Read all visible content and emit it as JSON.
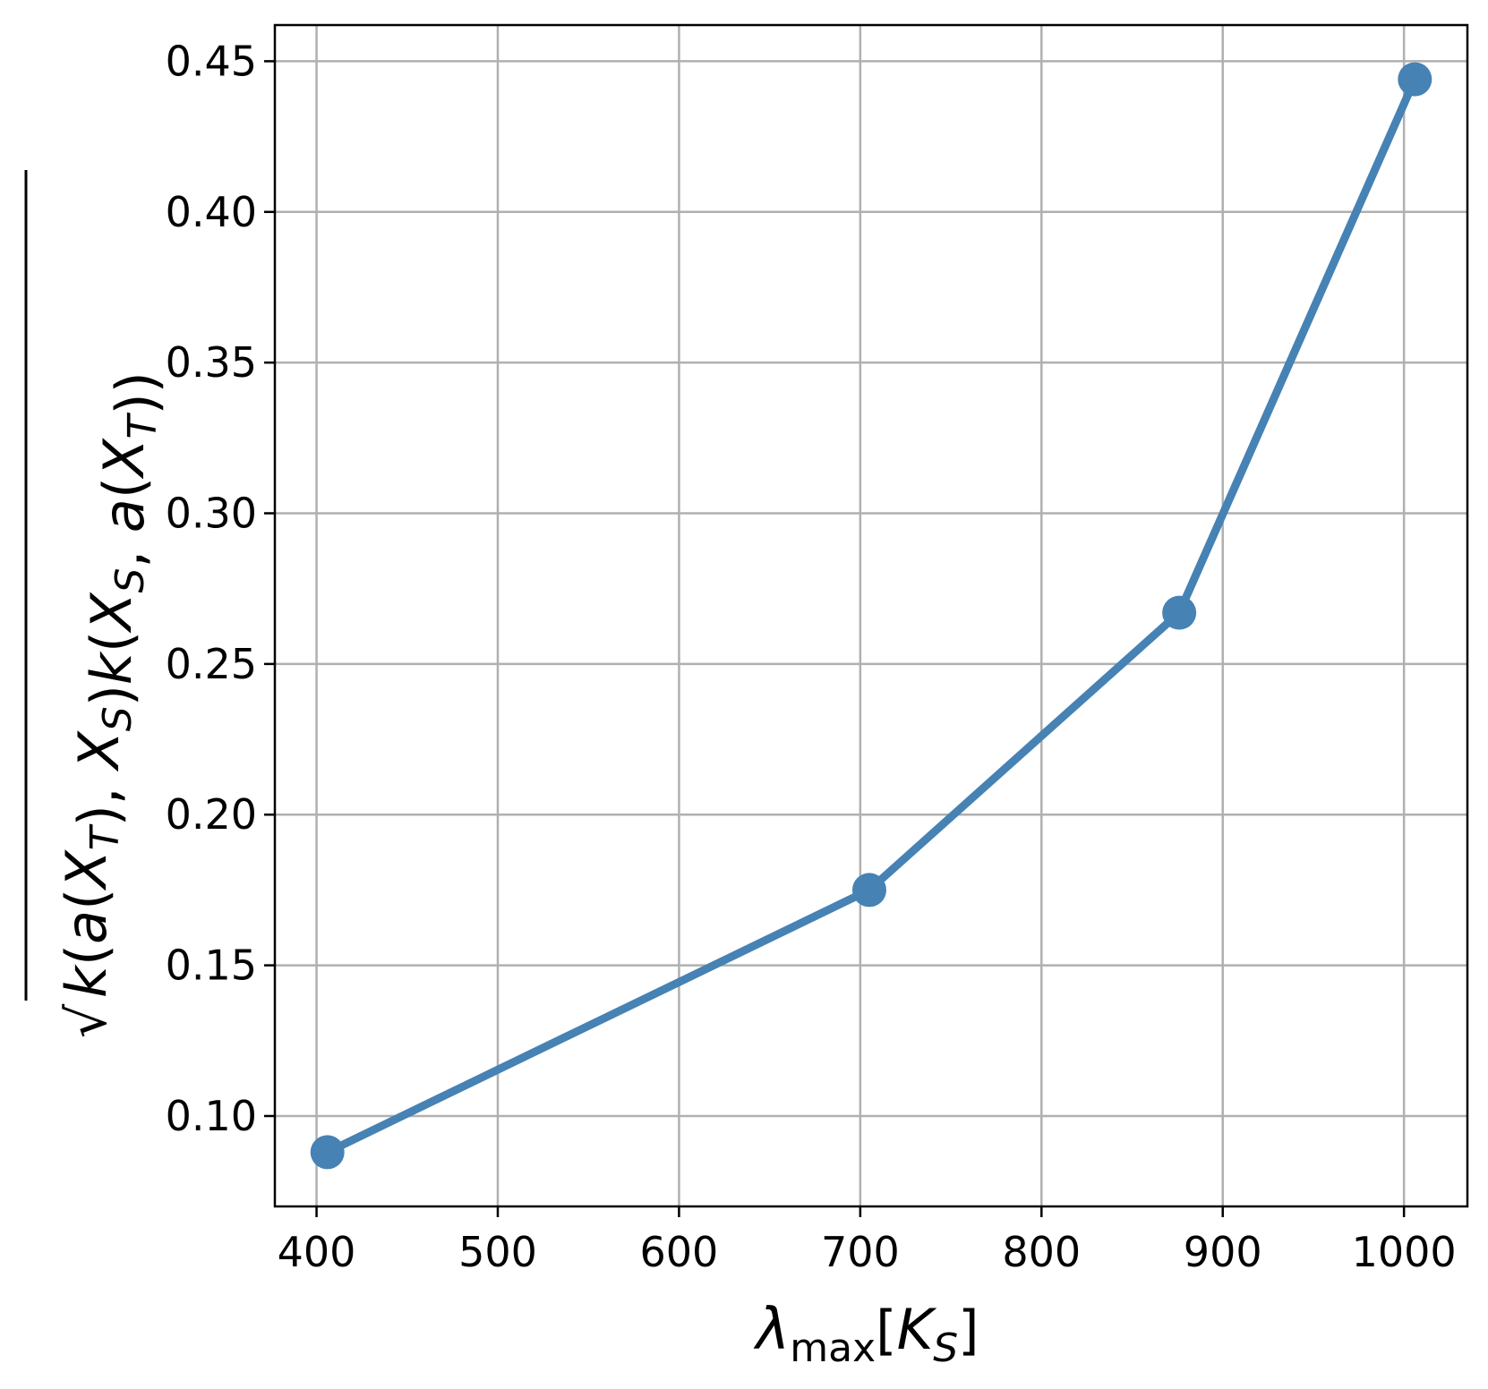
{
  "chart_data": {
    "type": "line",
    "title": "",
    "x": [
      406,
      705,
      876,
      1006
    ],
    "series": [
      {
        "values": [
          0.088,
          0.175,
          0.267,
          0.444
        ]
      }
    ],
    "xlim": [
      377,
      1035
    ],
    "ylim": [
      0.07,
      0.462
    ],
    "xticks": [
      400,
      500,
      600,
      700,
      800,
      900,
      1000
    ],
    "xtick_labels": [
      "400",
      "500",
      "600",
      "700",
      "800",
      "900",
      "1000"
    ],
    "yticks": [
      0.1,
      0.15,
      0.2,
      0.25,
      0.3,
      0.35,
      0.4,
      0.45
    ],
    "ytick_labels": [
      "0.10",
      "0.15",
      "0.20",
      "0.25",
      "0.30",
      "0.35",
      "0.40",
      "0.45"
    ],
    "xlabel": {
      "symbol": "λ",
      "subscript": "max",
      "open_bracket": "[",
      "var": "K",
      "var_subscript": "S",
      "close_bracket": "]"
    },
    "ylabel": {
      "radical": "√",
      "expression": "k(a(X_T), X_S)k(X_S, a(X_T))",
      "parts": [
        {
          "t": "k",
          "i": true
        },
        {
          "t": "("
        },
        {
          "t": "a",
          "i": true
        },
        {
          "t": "("
        },
        {
          "t": "X",
          "i": true
        },
        {
          "t": "T",
          "i": true,
          "sub": true
        },
        {
          "t": "), "
        },
        {
          "t": "X",
          "i": true
        },
        {
          "t": "S",
          "i": true,
          "sub": true
        },
        {
          "t": ")"
        },
        {
          "t": "k",
          "i": true
        },
        {
          "t": "("
        },
        {
          "t": "X",
          "i": true
        },
        {
          "t": "S",
          "i": true,
          "sub": true
        },
        {
          "t": ", "
        },
        {
          "t": "a",
          "i": true
        },
        {
          "t": "("
        },
        {
          "t": "X",
          "i": true
        },
        {
          "t": "T",
          "i": true,
          "sub": true
        },
        {
          "t": "))"
        }
      ]
    },
    "grid": true,
    "line_color": "#4682b4",
    "grid_color": "#b0b0b0",
    "marker": "circle"
  }
}
